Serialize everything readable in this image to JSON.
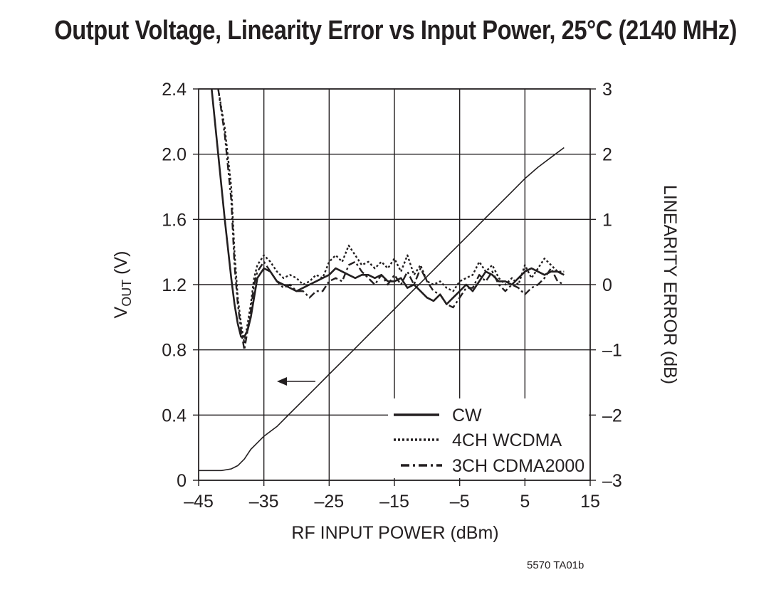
{
  "chart_data": {
    "type": "line",
    "title": "Output Voltage, Linearity Error vs Input Power, 25°C (2140 MHz)",
    "xlabel": "RF INPUT POWER (dBm)",
    "ylabel_left": "VOUT (V)",
    "ylabel_left_main": "V",
    "ylabel_left_sub": "OUT",
    "ylabel_left_unit": " (V)",
    "ylabel_right": "LINEARITY ERROR (dB)",
    "xlim": [
      -45,
      15
    ],
    "ylim_left": [
      0,
      2.4
    ],
    "ylim_right": [
      -3,
      3
    ],
    "x_ticks": [
      -45,
      -35,
      -25,
      -15,
      -5,
      5,
      15
    ],
    "x_tick_labels": [
      "–45",
      "–35",
      "–25",
      "–15",
      "–5",
      "5",
      "15"
    ],
    "y_left_ticks": [
      0,
      0.4,
      0.8,
      1.2,
      1.6,
      2.0,
      2.4
    ],
    "y_left_tick_labels": [
      "0",
      "0.4",
      "0.8",
      "1.2",
      "1.6",
      "2.0",
      "2.4"
    ],
    "y_right_ticks": [
      -3,
      -2,
      -1,
      0,
      1,
      2,
      3
    ],
    "y_right_tick_labels": [
      "–3",
      "–2",
      "–1",
      "0",
      "1",
      "2",
      "3"
    ],
    "grid": true,
    "legend_position": "bottom-right",
    "legend": [
      "CW",
      "4CH WCDMA",
      "3CH CDMA2000"
    ],
    "annotation_arrow": "left (VOUT curve uses left axis)",
    "series": [
      {
        "name": "VOUT",
        "axis": "left",
        "style": "solid-thin",
        "x": [
          -45,
          -43,
          -41.5,
          -40,
          -39,
          -38,
          -37,
          -36,
          -35,
          -33,
          -31,
          -29,
          -27,
          -25,
          -23,
          -21,
          -19,
          -17,
          -15,
          -13,
          -11,
          -9,
          -7,
          -5,
          -3,
          -1,
          1,
          3,
          5,
          7,
          9,
          11
        ],
        "y": [
          0.06,
          0.06,
          0.06,
          0.07,
          0.09,
          0.13,
          0.19,
          0.23,
          0.27,
          0.33,
          0.41,
          0.49,
          0.57,
          0.65,
          0.73,
          0.81,
          0.89,
          0.97,
          1.05,
          1.13,
          1.21,
          1.29,
          1.37,
          1.45,
          1.53,
          1.61,
          1.69,
          1.77,
          1.85,
          1.92,
          1.98,
          2.04
        ]
      },
      {
        "name": "CW",
        "axis": "right",
        "style": "solid",
        "x": [
          -43,
          -42,
          -41,
          -40,
          -39.5,
          -39,
          -38.5,
          -38,
          -37.5,
          -37,
          -36.5,
          -36,
          -35,
          -34,
          -33,
          -32,
          -31,
          -30,
          -29,
          -28,
          -27,
          -26,
          -25,
          -24,
          -23,
          -22,
          -21,
          -20,
          -19,
          -18,
          -17,
          -16,
          -15,
          -14,
          -13,
          -12,
          -11,
          -10,
          -9,
          -8,
          -7,
          -6,
          -5,
          -4,
          -3,
          -2,
          -1,
          0,
          1,
          2,
          3,
          4,
          5,
          6,
          7,
          8,
          9,
          10,
          11
        ],
        "y": [
          3.0,
          2.0,
          1.0,
          0.1,
          -0.3,
          -0.6,
          -0.8,
          -0.8,
          -0.7,
          -0.5,
          -0.2,
          0.1,
          0.25,
          0.2,
          0.05,
          0.0,
          -0.05,
          -0.1,
          -0.05,
          0.0,
          0.05,
          0.1,
          0.15,
          0.25,
          0.2,
          0.15,
          0.1,
          0.15,
          0.15,
          0.1,
          0.15,
          0.05,
          0.05,
          0.1,
          -0.05,
          0.0,
          -0.1,
          -0.2,
          -0.25,
          -0.15,
          -0.3,
          -0.2,
          -0.1,
          0.0,
          -0.1,
          0.05,
          0.2,
          0.15,
          0.05,
          0.05,
          0.0,
          0.1,
          0.2,
          0.25,
          0.2,
          0.15,
          0.2,
          0.2,
          0.15
        ]
      },
      {
        "name": "4CH WCDMA",
        "axis": "right",
        "style": "dotted",
        "x": [
          -42,
          -41,
          -40,
          -39.5,
          -39,
          -38.5,
          -38,
          -37.5,
          -37,
          -36.5,
          -36,
          -35,
          -34,
          -33,
          -32,
          -31,
          -30,
          -29,
          -28,
          -27,
          -26,
          -25,
          -24,
          -23,
          -22,
          -21,
          -20,
          -19,
          -18,
          -17,
          -16,
          -15,
          -14,
          -13,
          -12,
          -11,
          -10,
          -9,
          -8,
          -7,
          -6,
          -5,
          -4,
          -3,
          -2,
          -1,
          0,
          1,
          2,
          3,
          4,
          5,
          6,
          7,
          8,
          9,
          10,
          11
        ],
        "y": [
          3.0,
          2.4,
          1.5,
          0.5,
          -0.2,
          -0.6,
          -0.9,
          -0.6,
          -0.3,
          0.1,
          0.3,
          0.45,
          0.35,
          0.2,
          0.1,
          0.15,
          0.1,
          0.0,
          0.05,
          0.15,
          0.1,
          0.35,
          0.45,
          0.35,
          0.6,
          0.45,
          0.3,
          0.35,
          0.25,
          0.35,
          0.25,
          0.4,
          0.2,
          0.45,
          0.15,
          0.3,
          0.05,
          0.0,
          0.05,
          -0.05,
          -0.1,
          0.05,
          0.1,
          0.15,
          0.35,
          0.2,
          0.3,
          0.1,
          0.0,
          0.1,
          0.0,
          0.3,
          0.1,
          0.25,
          0.4,
          0.3,
          0.2,
          0.2
        ]
      },
      {
        "name": "3CH CDMA2000",
        "axis": "right",
        "style": "dash-dot",
        "x": [
          -42,
          -41,
          -40,
          -39.5,
          -39,
          -38.5,
          -38,
          -37.5,
          -37,
          -36.5,
          -36,
          -35,
          -34,
          -33,
          -32,
          -31,
          -30,
          -29,
          -28,
          -27,
          -26,
          -25,
          -24,
          -23,
          -22,
          -21,
          -20,
          -19,
          -18,
          -17,
          -16,
          -15,
          -14,
          -13,
          -12,
          -11,
          -10,
          -9,
          -8,
          -7,
          -6,
          -5,
          -4,
          -3,
          -2,
          -1,
          0,
          1,
          2,
          3,
          4,
          5,
          6,
          7,
          8,
          9,
          10,
          11
        ],
        "y": [
          3.0,
          2.3,
          1.3,
          0.3,
          -0.3,
          -0.7,
          -1.0,
          -0.7,
          -0.4,
          0.0,
          0.2,
          0.35,
          0.2,
          0.05,
          -0.05,
          0.0,
          -0.1,
          -0.1,
          -0.2,
          -0.1,
          -0.1,
          0.05,
          0.1,
          0.05,
          0.3,
          0.35,
          0.2,
          0.1,
          0.0,
          0.15,
          0.0,
          0.15,
          0.0,
          0.2,
          0.0,
          0.25,
          0.05,
          -0.1,
          -0.15,
          -0.3,
          -0.35,
          -0.2,
          -0.05,
          -0.05,
          0.15,
          0.05,
          0.2,
          0.0,
          -0.1,
          0.0,
          -0.05,
          -0.15,
          -0.05,
          0.0,
          0.1,
          0.25,
          0.05,
          0.0
        ]
      }
    ],
    "footnote": "5570 TA01b"
  }
}
